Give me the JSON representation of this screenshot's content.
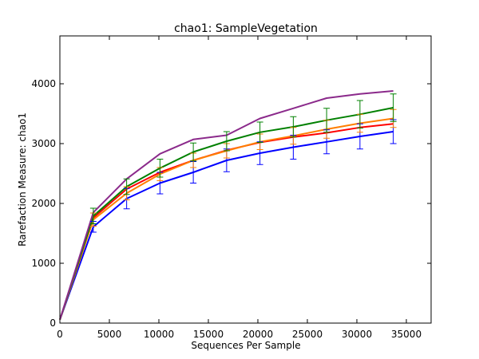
{
  "chart_data": {
    "type": "line",
    "title": "chao1: SampleVegetation",
    "xlabel": "Sequences Per Sample",
    "ylabel": "Rarefaction Measure: chao1",
    "xlim": [
      0,
      37500
    ],
    "ylim": [
      0,
      4800
    ],
    "x_ticks": [
      0,
      5000,
      10000,
      15000,
      20000,
      25000,
      30000,
      35000
    ],
    "y_ticks": [
      0,
      1000,
      2000,
      3000,
      4000
    ],
    "grid": false,
    "legend": "none",
    "x": [
      10,
      3377,
      6744,
      10111,
      13478,
      16845,
      20212,
      23579,
      26946,
      30313,
      33680
    ],
    "series": [
      {
        "color": "#0000ff",
        "values": [
          60,
          1610,
          2080,
          2340,
          2520,
          2720,
          2840,
          2940,
          3030,
          3120,
          3200
        ],
        "error": [
          0,
          90,
          170,
          180,
          180,
          190,
          190,
          200,
          200,
          210,
          200
        ]
      },
      {
        "color": "#ff0000",
        "values": [
          60,
          1760,
          2240,
          2520,
          2720,
          2890,
          3020,
          3110,
          3180,
          3270,
          3330
        ],
        "error": [
          0,
          0,
          0,
          0,
          0,
          0,
          0,
          0,
          0,
          0,
          0
        ]
      },
      {
        "color": "#ff7f00",
        "values": [
          60,
          1730,
          2170,
          2490,
          2720,
          2880,
          3030,
          3130,
          3240,
          3340,
          3420
        ],
        "error": [
          0,
          110,
          110,
          110,
          120,
          120,
          130,
          140,
          150,
          150,
          150
        ]
      },
      {
        "color": "#008000",
        "values": [
          60,
          1790,
          2280,
          2590,
          2860,
          3040,
          3190,
          3280,
          3390,
          3490,
          3600
        ],
        "error": [
          0,
          130,
          130,
          150,
          150,
          160,
          170,
          170,
          200,
          230,
          230
        ]
      },
      {
        "color": "#8b2a8b",
        "values": [
          60,
          1850,
          2410,
          2830,
          3070,
          3140,
          3420,
          3590,
          3760,
          3830,
          3880
        ],
        "error": [
          0,
          0,
          0,
          0,
          0,
          0,
          0,
          0,
          0,
          0,
          0
        ]
      }
    ]
  }
}
